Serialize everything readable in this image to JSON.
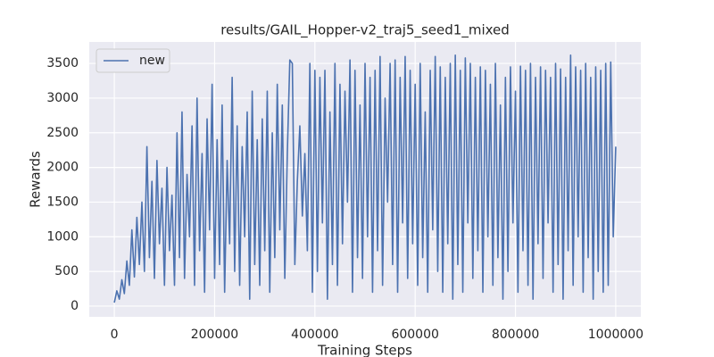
{
  "chart_data": {
    "type": "line",
    "title": "results/GAIL_Hopper-v2_traj5_seed1_mixed",
    "xlabel": "Training Steps",
    "ylabel": "Rewards",
    "xlim": [
      -50000,
      1050000
    ],
    "ylim": [
      -155,
      3810
    ],
    "xticks": [
      0,
      200000,
      400000,
      600000,
      800000,
      1000000
    ],
    "yticks": [
      0,
      500,
      1000,
      1500,
      2000,
      2500,
      3000,
      3500
    ],
    "grid": true,
    "legend": "upper left",
    "x": [
      0,
      5000,
      10000,
      15000,
      20000,
      25000,
      30000,
      35000,
      40000,
      45000,
      50000,
      55000,
      60000,
      65000,
      70000,
      75000,
      80000,
      85000,
      90000,
      95000,
      100000,
      105000,
      110000,
      115000,
      120000,
      125000,
      130000,
      135000,
      140000,
      145000,
      150000,
      155000,
      160000,
      165000,
      170000,
      175000,
      180000,
      185000,
      190000,
      195000,
      200000,
      205000,
      210000,
      215000,
      220000,
      225000,
      230000,
      235000,
      240000,
      245000,
      250000,
      255000,
      260000,
      265000,
      270000,
      275000,
      280000,
      285000,
      290000,
      295000,
      300000,
      305000,
      310000,
      315000,
      320000,
      325000,
      330000,
      335000,
      340000,
      345000,
      350000,
      355000,
      360000,
      365000,
      370000,
      375000,
      380000,
      385000,
      390000,
      395000,
      400000,
      405000,
      410000,
      415000,
      420000,
      425000,
      430000,
      435000,
      440000,
      445000,
      450000,
      455000,
      460000,
      465000,
      470000,
      475000,
      480000,
      485000,
      490000,
      495000,
      500000,
      505000,
      510000,
      515000,
      520000,
      525000,
      530000,
      535000,
      540000,
      545000,
      550000,
      555000,
      560000,
      565000,
      570000,
      575000,
      580000,
      585000,
      590000,
      595000,
      600000,
      605000,
      610000,
      615000,
      620000,
      625000,
      630000,
      635000,
      640000,
      645000,
      650000,
      655000,
      660000,
      665000,
      670000,
      675000,
      680000,
      685000,
      690000,
      695000,
      700000,
      705000,
      710000,
      715000,
      720000,
      725000,
      730000,
      735000,
      740000,
      745000,
      750000,
      755000,
      760000,
      765000,
      770000,
      775000,
      780000,
      785000,
      790000,
      795000,
      800000,
      805000,
      810000,
      815000,
      820000,
      825000,
      830000,
      835000,
      840000,
      845000,
      850000,
      855000,
      860000,
      865000,
      870000,
      875000,
      880000,
      885000,
      890000,
      895000,
      900000,
      905000,
      910000,
      915000,
      920000,
      925000,
      930000,
      935000,
      940000,
      945000,
      950000,
      955000,
      960000,
      965000,
      970000,
      975000,
      980000,
      985000,
      990000,
      995000,
      1000000
    ],
    "series": [
      {
        "name": "new",
        "color": "#4c72b0",
        "values": [
          50,
          220,
          100,
          380,
          180,
          650,
          300,
          1100,
          420,
          1280,
          600,
          1500,
          500,
          2300,
          700,
          1800,
          400,
          2100,
          900,
          1700,
          300,
          2000,
          800,
          1600,
          300,
          2500,
          700,
          2800,
          400,
          1900,
          1000,
          2600,
          300,
          3000,
          800,
          2200,
          200,
          2700,
          1100,
          3200,
          400,
          2400,
          600,
          2900,
          200,
          2100,
          900,
          3300,
          500,
          2600,
          300,
          2300,
          1000,
          2800,
          100,
          3100,
          600,
          2400,
          300,
          2700,
          800,
          3100,
          200,
          2500,
          700,
          3200,
          1100,
          2900,
          400,
          2200,
          3550,
          3500,
          600,
          1800,
          2600,
          1300,
          2200,
          800,
          3500,
          200,
          3400,
          500,
          3300,
          1200,
          3400,
          100,
          2800,
          600,
          3500,
          300,
          3200,
          900,
          3100,
          1500,
          3550,
          200,
          3400,
          700,
          2900,
          400,
          3500,
          1000,
          3300,
          200,
          3400,
          800,
          3600,
          300,
          3000,
          1500,
          3500,
          600,
          3550,
          200,
          3300,
          1200,
          3600,
          400,
          3400,
          900,
          3200,
          300,
          3500,
          700,
          2800,
          200,
          3400,
          1100,
          3600,
          500,
          3450,
          200,
          3300,
          900,
          3500,
          100,
          3620,
          600,
          3400,
          200,
          3580,
          1200,
          3500,
          400,
          3300,
          800,
          3450,
          200,
          3400,
          1000,
          3200,
          300,
          3500,
          700,
          2900,
          100,
          3300,
          500,
          3450,
          1200,
          3100,
          200,
          3460,
          800,
          3400,
          300,
          3500,
          100,
          3300,
          900,
          3450,
          400,
          3400,
          1200,
          3300,
          200,
          3500,
          600,
          3420,
          100,
          3300,
          800,
          3620,
          300,
          3450,
          1000,
          3400,
          200,
          3500,
          700,
          3300,
          100,
          3450,
          500,
          3400,
          200,
          3500,
          300,
          3520,
          1000,
          2300
        ]
      }
    ]
  }
}
